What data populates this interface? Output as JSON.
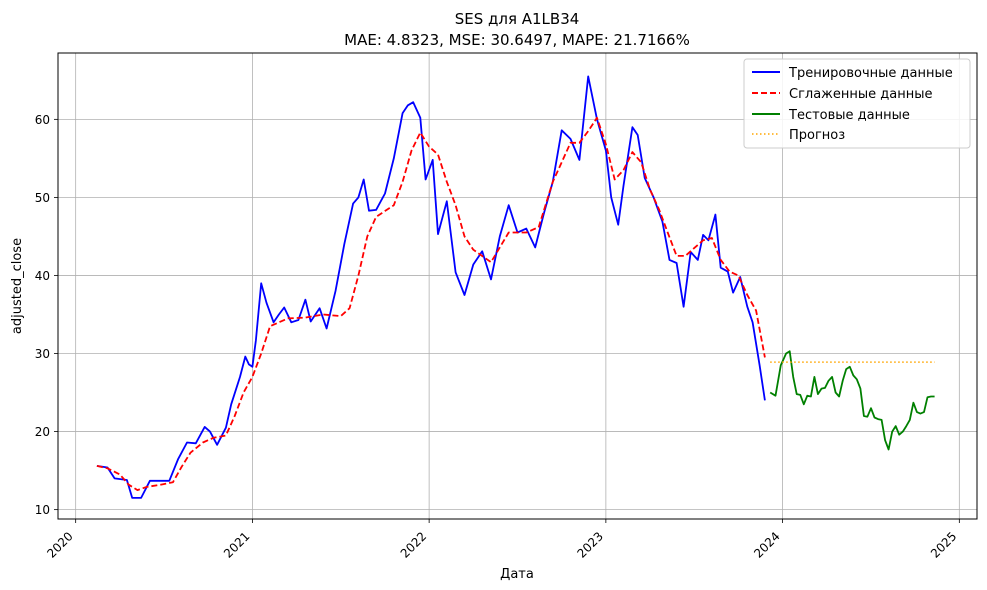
{
  "chart_data": {
    "type": "line",
    "title": "SES для A1LB34",
    "subtitle": "MAE: 4.8323, MSE: 30.6497, MAPE: 21.7166%",
    "xlabel": "Дата",
    "ylabel": "adjusted_close",
    "xlim": [
      2019.9,
      2025.1
    ],
    "ylim": [
      8.8,
      68.5
    ],
    "grid": true,
    "legend_position": "top-right",
    "x_ticks": [
      {
        "value": 2020,
        "label": "2020"
      },
      {
        "value": 2021,
        "label": "2021"
      },
      {
        "value": 2022,
        "label": "2022"
      },
      {
        "value": 2023,
        "label": "2023"
      },
      {
        "value": 2024,
        "label": "2024"
      },
      {
        "value": 2025,
        "label": "2025"
      }
    ],
    "y_ticks": [
      {
        "value": 10,
        "label": "10"
      },
      {
        "value": 20,
        "label": "20"
      },
      {
        "value": 30,
        "label": "30"
      },
      {
        "value": 40,
        "label": "40"
      },
      {
        "value": 50,
        "label": "50"
      },
      {
        "value": 60,
        "label": "60"
      }
    ],
    "series": [
      {
        "name": "Тренировочные данные",
        "color": "#0000ff",
        "style": "solid",
        "x": [
          2020.12,
          2020.18,
          2020.22,
          2020.29,
          2020.32,
          2020.37,
          2020.42,
          2020.48,
          2020.53,
          2020.58,
          2020.63,
          2020.68,
          2020.73,
          2020.76,
          2020.8,
          2020.85,
          2020.88,
          2020.93,
          2020.96,
          2020.98,
          2021.0,
          2021.02,
          2021.05,
          2021.08,
          2021.12,
          2021.15,
          2021.18,
          2021.22,
          2021.26,
          2021.3,
          2021.33,
          2021.38,
          2021.42,
          2021.47,
          2021.52,
          2021.57,
          2021.6,
          2021.63,
          2021.66,
          2021.7,
          2021.75,
          2021.8,
          2021.85,
          2021.88,
          2021.91,
          2021.95,
          2021.98,
          2022.02,
          2022.05,
          2022.1,
          2022.15,
          2022.2,
          2022.25,
          2022.3,
          2022.35,
          2022.4,
          2022.45,
          2022.5,
          2022.55,
          2022.6,
          2022.65,
          2022.7,
          2022.75,
          2022.8,
          2022.85,
          2022.9,
          2022.95,
          2023.0,
          2023.03,
          2023.07,
          2023.1,
          2023.15,
          2023.18,
          2023.22,
          2023.27,
          2023.32,
          2023.36,
          2023.4,
          2023.44,
          2023.48,
          2023.52,
          2023.55,
          2023.58,
          2023.62,
          2023.65,
          2023.69,
          2023.72,
          2023.76,
          2023.8,
          2023.83,
          2023.87,
          2023.9
        ],
        "y": [
          15.6,
          15.4,
          14.0,
          13.8,
          11.5,
          11.5,
          13.7,
          13.7,
          13.7,
          16.5,
          18.6,
          18.5,
          20.6,
          20.0,
          18.3,
          20.5,
          23.5,
          27.0,
          29.6,
          28.6,
          28.3,
          31.7,
          39.0,
          36.5,
          34.0,
          35.0,
          35.9,
          34.0,
          34.3,
          36.9,
          34.1,
          35.8,
          33.2,
          38.0,
          44.0,
          49.2,
          50.0,
          52.3,
          48.3,
          48.4,
          50.5,
          55.0,
          60.8,
          61.8,
          62.2,
          60.2,
          52.3,
          54.8,
          45.3,
          49.5,
          40.4,
          37.5,
          41.4,
          43.1,
          39.5,
          45.0,
          49.0,
          45.5,
          46.0,
          43.6,
          48.0,
          52.0,
          58.6,
          57.5,
          54.8,
          65.5,
          60.0,
          56.0,
          50.0,
          46.5,
          51.5,
          59.0,
          58.0,
          52.5,
          50.0,
          46.9,
          42.0,
          41.6,
          36.0,
          43.0,
          42.0,
          45.2,
          44.5,
          47.8,
          41.0,
          40.5,
          37.8,
          39.8,
          36.0,
          34.0,
          28.5,
          24.0
        ]
      },
      {
        "name": "Сглаженные данные",
        "color": "#ff0000",
        "style": "dashed",
        "x": [
          2020.12,
          2020.18,
          2020.25,
          2020.3,
          2020.35,
          2020.4,
          2020.48,
          2020.55,
          2020.6,
          2020.65,
          2020.72,
          2020.78,
          2020.85,
          2020.9,
          2020.95,
          2021.0,
          2021.05,
          2021.1,
          2021.2,
          2021.3,
          2021.4,
          2021.5,
          2021.55,
          2021.6,
          2021.65,
          2021.7,
          2021.8,
          2021.85,
          2021.9,
          2021.95,
          2022.0,
          2022.05,
          2022.1,
          2022.15,
          2022.2,
          2022.25,
          2022.35,
          2022.45,
          2022.55,
          2022.62,
          2022.7,
          2022.75,
          2022.8,
          2022.85,
          2022.9,
          2022.95,
          2023.0,
          2023.05,
          2023.1,
          2023.15,
          2023.2,
          2023.25,
          2023.3,
          2023.35,
          2023.4,
          2023.45,
          2023.5,
          2023.55,
          2023.6,
          2023.65,
          2023.7,
          2023.75,
          2023.8,
          2023.85,
          2023.9
        ],
        "y": [
          15.6,
          15.3,
          14.5,
          13.2,
          12.5,
          12.9,
          13.2,
          13.5,
          15.5,
          17.3,
          18.6,
          19.2,
          19.5,
          22.0,
          25.0,
          27.0,
          30.0,
          33.5,
          34.5,
          34.6,
          35.0,
          34.8,
          35.8,
          40.0,
          45.0,
          47.5,
          49.0,
          52.0,
          56.0,
          58.3,
          56.5,
          55.5,
          52.0,
          49.0,
          45.0,
          43.3,
          41.7,
          45.5,
          45.5,
          46.2,
          52.0,
          54.5,
          57.0,
          57.0,
          58.5,
          60.2,
          56.8,
          52.3,
          53.5,
          55.8,
          54.5,
          51.0,
          48.5,
          45.5,
          42.5,
          42.5,
          43.5,
          44.5,
          44.8,
          42.0,
          40.5,
          40.0,
          37.5,
          35.5,
          29.5
        ]
      },
      {
        "name": "Тестовые данные",
        "color": "#008000",
        "style": "solid",
        "x": [
          2023.93,
          2023.96,
          2023.99,
          2024.02,
          2024.04,
          2024.06,
          2024.08,
          2024.1,
          2024.12,
          2024.14,
          2024.16,
          2024.18,
          2024.2,
          2024.22,
          2024.24,
          2024.26,
          2024.28,
          2024.3,
          2024.32,
          2024.34,
          2024.36,
          2024.38,
          2024.4,
          2024.42,
          2024.44,
          2024.46,
          2024.48,
          2024.5,
          2024.52,
          2024.54,
          2024.56,
          2024.58,
          2024.6,
          2024.62,
          2024.64,
          2024.66,
          2024.68,
          2024.7,
          2024.72,
          2024.74,
          2024.76,
          2024.78,
          2024.8,
          2024.82,
          2024.84,
          2024.86
        ],
        "y": [
          25.0,
          24.6,
          28.5,
          30.0,
          30.3,
          27.0,
          24.8,
          24.7,
          23.5,
          24.6,
          24.5,
          27.0,
          24.8,
          25.5,
          25.6,
          26.5,
          27.0,
          25.0,
          24.5,
          26.5,
          28.0,
          28.3,
          27.2,
          26.7,
          25.5,
          22.0,
          21.9,
          23.0,
          21.8,
          21.6,
          21.5,
          18.9,
          17.7,
          20.0,
          20.7,
          19.6,
          20.0,
          20.7,
          21.5,
          23.7,
          22.5,
          22.3,
          22.5,
          24.4,
          24.5,
          24.5
        ]
      },
      {
        "name": "Прогноз",
        "color": "#ffa500",
        "style": "dotted",
        "x": [
          2023.93,
          2024.86
        ],
        "y": [
          28.9,
          28.9
        ]
      }
    ]
  }
}
